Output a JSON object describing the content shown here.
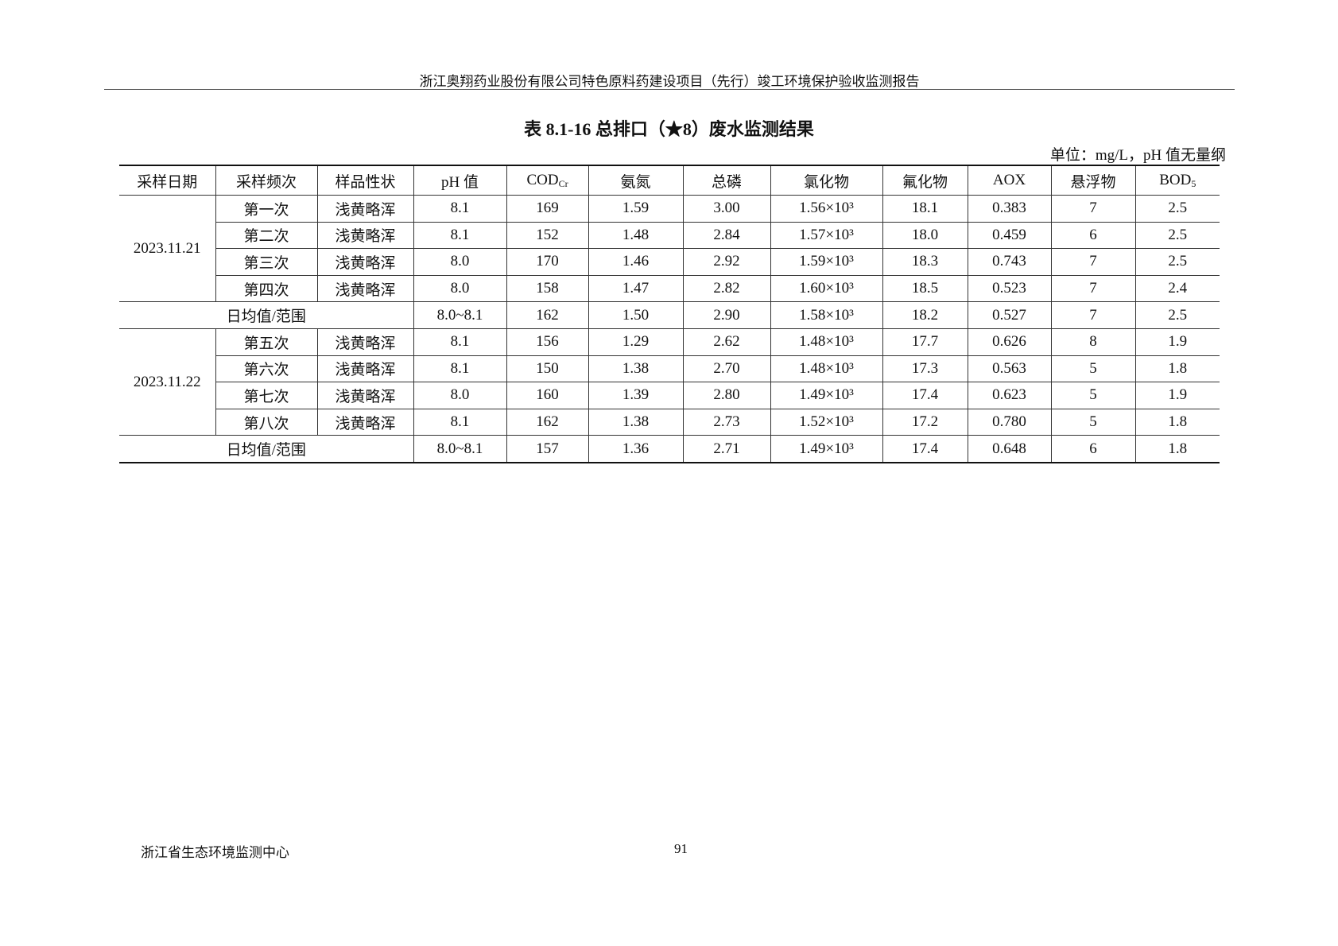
{
  "running_header": "浙江奥翔药业股份有限公司特色原料药建设项目（先行）竣工环境保护验收监测报告",
  "title": "表 8.1-16  总排口（★8）废水监测结果",
  "unit": "单位：mg/L，pH 值无量纲",
  "columns": [
    {
      "main": "采样日期"
    },
    {
      "main": "采样频次"
    },
    {
      "main": "样品性状"
    },
    {
      "main": "pH 值"
    },
    {
      "main": "COD",
      "sub": "Cr"
    },
    {
      "main": "氨氮"
    },
    {
      "main": "总磷"
    },
    {
      "main": "氯化物"
    },
    {
      "main": "氟化物"
    },
    {
      "main": "AOX"
    },
    {
      "main": "悬浮物"
    },
    {
      "main": "BOD",
      "sub": "5"
    }
  ],
  "groups": [
    {
      "date": "2023.11.21",
      "rows": [
        [
          "第一次",
          "浅黄略浑",
          "8.1",
          "169",
          "1.59",
          "3.00",
          "1.56×10³",
          "18.1",
          "0.383",
          "7",
          "2.5"
        ],
        [
          "第二次",
          "浅黄略浑",
          "8.1",
          "152",
          "1.48",
          "2.84",
          "1.57×10³",
          "18.0",
          "0.459",
          "6",
          "2.5"
        ],
        [
          "第三次",
          "浅黄略浑",
          "8.0",
          "170",
          "1.46",
          "2.92",
          "1.59×10³",
          "18.3",
          "0.743",
          "7",
          "2.5"
        ],
        [
          "第四次",
          "浅黄略浑",
          "8.0",
          "158",
          "1.47",
          "2.82",
          "1.60×10³",
          "18.5",
          "0.523",
          "7",
          "2.4"
        ]
      ],
      "summary": {
        "label": "日均值/范围",
        "values": [
          "8.0~8.1",
          "162",
          "1.50",
          "2.90",
          "1.58×10³",
          "18.2",
          "0.527",
          "7",
          "2.5"
        ]
      }
    },
    {
      "date": "2023.11.22",
      "rows": [
        [
          "第五次",
          "浅黄略浑",
          "8.1",
          "156",
          "1.29",
          "2.62",
          "1.48×10³",
          "17.7",
          "0.626",
          "8",
          "1.9"
        ],
        [
          "第六次",
          "浅黄略浑",
          "8.1",
          "150",
          "1.38",
          "2.70",
          "1.48×10³",
          "17.3",
          "0.563",
          "5",
          "1.8"
        ],
        [
          "第七次",
          "浅黄略浑",
          "8.0",
          "160",
          "1.39",
          "2.80",
          "1.49×10³",
          "17.4",
          "0.623",
          "5",
          "1.9"
        ],
        [
          "第八次",
          "浅黄略浑",
          "8.1",
          "162",
          "1.38",
          "2.73",
          "1.52×10³",
          "17.2",
          "0.780",
          "5",
          "1.8"
        ]
      ],
      "summary": {
        "label": "日均值/范围",
        "values": [
          "8.0~8.1",
          "157",
          "1.36",
          "2.71",
          "1.49×10³",
          "17.4",
          "0.648",
          "6",
          "1.8"
        ]
      }
    }
  ],
  "footer": {
    "org": "浙江省生态环境监测中心",
    "page": "91"
  }
}
